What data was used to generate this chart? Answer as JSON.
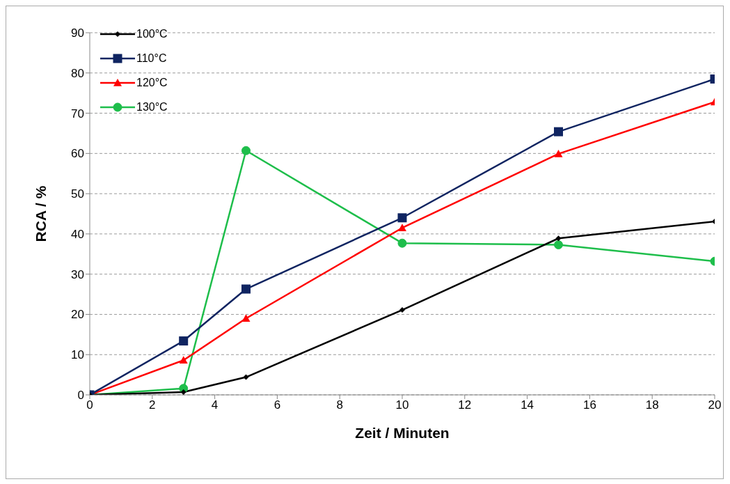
{
  "chart_data": {
    "type": "line",
    "xlabel": "Zeit / Minuten",
    "ylabel": "RCA / %",
    "x": [
      0,
      3,
      5,
      10,
      15,
      20
    ],
    "xlim": [
      0,
      20
    ],
    "xticks": [
      0,
      2,
      4,
      6,
      8,
      10,
      12,
      14,
      16,
      18,
      20
    ],
    "ylim": [
      0,
      90
    ],
    "yticks": [
      0,
      10,
      20,
      30,
      40,
      50,
      60,
      70,
      80,
      90
    ],
    "grid": "y",
    "legend": "top left",
    "line_style": "solid",
    "series": [
      {
        "name": "100°C",
        "color": "#000000",
        "marker": "diamond",
        "values": [
          0,
          0.7,
          4.4,
          21.1,
          38.9,
          43.1
        ]
      },
      {
        "name": "110°C",
        "color": "#0f2461",
        "marker": "square",
        "values": [
          0,
          13.4,
          26.3,
          44.0,
          65.4,
          78.5
        ]
      },
      {
        "name": "120°C",
        "color": "#ff0000",
        "marker": "triangle",
        "values": [
          0,
          8.6,
          19.0,
          41.5,
          59.9,
          72.8
        ]
      },
      {
        "name": "130°C",
        "color": "#1ebe4b",
        "marker": "circle",
        "values": [
          0,
          1.6,
          60.7,
          37.7,
          37.3,
          33.2
        ]
      }
    ]
  }
}
